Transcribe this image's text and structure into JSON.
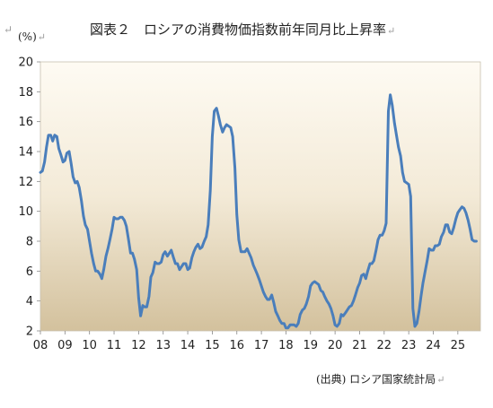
{
  "title": "図表２　ロシアの消費物価指数前年同月比上昇率",
  "source": "(出典) ロシア国家統計局",
  "chart_data": {
    "type": "line",
    "title": "図表２　ロシアの消費物価指数前年同月比上昇率",
    "ylabel": "(%)",
    "xlabel": "",
    "ylim": [
      2,
      20
    ],
    "xlim": [
      2008.0,
      2025.92
    ],
    "yticks": [
      2,
      4,
      6,
      8,
      10,
      12,
      14,
      16,
      18,
      20
    ],
    "xticks": [
      "08",
      "09",
      "10",
      "11",
      "12",
      "13",
      "14",
      "15",
      "16",
      "17",
      "18",
      "19",
      "20",
      "21",
      "22",
      "23",
      "24",
      "25"
    ],
    "grid": false,
    "legend": "none",
    "colors": {
      "line": "#4a7ebb",
      "bg_top": "#fefbf3",
      "bg_bottom": "#d3c19d"
    },
    "series": [
      {
        "x": [
          2008.0,
          2008.08,
          2008.17,
          2008.25,
          2008.33,
          2008.42,
          2008.5,
          2008.58,
          2008.67,
          2008.75,
          2008.83,
          2008.92,
          2009.0,
          2009.08,
          2009.17,
          2009.25,
          2009.33,
          2009.42,
          2009.5,
          2009.58,
          2009.67,
          2009.75,
          2009.83,
          2009.92,
          2010.0,
          2010.08,
          2010.17,
          2010.25,
          2010.33,
          2010.42,
          2010.5,
          2010.58,
          2010.67,
          2010.75,
          2010.83,
          2010.92,
          2011.0,
          2011.08,
          2011.17,
          2011.25,
          2011.33,
          2011.42,
          2011.5,
          2011.58,
          2011.67,
          2011.75,
          2011.83,
          2011.92,
          2012.0,
          2012.08,
          2012.17,
          2012.25,
          2012.33,
          2012.42,
          2012.5,
          2012.58,
          2012.67,
          2012.75,
          2012.83,
          2012.92,
          2013.0,
          2013.08,
          2013.17,
          2013.25,
          2013.33,
          2013.42,
          2013.5,
          2013.58,
          2013.67,
          2013.75,
          2013.83,
          2013.92,
          2014.0,
          2014.08,
          2014.17,
          2014.25,
          2014.33,
          2014.42,
          2014.5,
          2014.58,
          2014.67,
          2014.75,
          2014.83,
          2014.92,
          2015.0,
          2015.08,
          2015.17,
          2015.25,
          2015.33,
          2015.42,
          2015.5,
          2015.58,
          2015.67,
          2015.75,
          2015.83,
          2015.92,
          2016.0,
          2016.08,
          2016.17,
          2016.25,
          2016.33,
          2016.42,
          2016.5,
          2016.58,
          2016.67,
          2016.75,
          2016.83,
          2016.92,
          2017.0,
          2017.08,
          2017.17,
          2017.25,
          2017.33,
          2017.42,
          2017.5,
          2017.58,
          2017.67,
          2017.75,
          2017.83,
          2017.92,
          2018.0,
          2018.08,
          2018.17,
          2018.25,
          2018.33,
          2018.42,
          2018.5,
          2018.58,
          2018.67,
          2018.75,
          2018.83,
          2018.92,
          2019.0,
          2019.08,
          2019.17,
          2019.25,
          2019.33,
          2019.42,
          2019.5,
          2019.58,
          2019.67,
          2019.75,
          2019.83,
          2019.92,
          2020.0,
          2020.08,
          2020.17,
          2020.25,
          2020.33,
          2020.42,
          2020.5,
          2020.58,
          2020.67,
          2020.75,
          2020.83,
          2020.92,
          2021.0,
          2021.08,
          2021.17,
          2021.25,
          2021.33,
          2021.42,
          2021.5,
          2021.58,
          2021.67,
          2021.75,
          2021.83,
          2021.92,
          2022.0,
          2022.08,
          2022.17,
          2022.25,
          2022.33,
          2022.42,
          2022.5,
          2022.58,
          2022.67,
          2022.75,
          2022.83,
          2022.92,
          2023.0,
          2023.08,
          2023.17,
          2023.25,
          2023.33,
          2023.42,
          2023.5,
          2023.58,
          2023.67,
          2023.75,
          2023.83,
          2023.92,
          2024.0,
          2024.08,
          2024.17,
          2024.25,
          2024.33,
          2024.42,
          2024.5,
          2024.58,
          2024.67,
          2024.75,
          2024.83,
          2024.92,
          2025.0,
          2025.08,
          2025.17,
          2025.25,
          2025.33,
          2025.42,
          2025.5,
          2025.58,
          2025.67,
          2025.75
        ],
        "values": [
          12.6,
          12.7,
          13.3,
          14.3,
          15.1,
          15.1,
          14.7,
          15.1,
          15.0,
          14.2,
          13.8,
          13.3,
          13.4,
          13.9,
          14.0,
          13.2,
          12.3,
          11.9,
          12.0,
          11.6,
          10.7,
          9.7,
          9.1,
          8.8,
          8.0,
          7.2,
          6.5,
          6.0,
          6.0,
          5.8,
          5.5,
          6.1,
          7.0,
          7.5,
          8.1,
          8.8,
          9.6,
          9.5,
          9.5,
          9.6,
          9.6,
          9.4,
          9.0,
          8.2,
          7.2,
          7.2,
          6.8,
          6.1,
          4.2,
          3.0,
          3.7,
          3.6,
          3.6,
          4.3,
          5.6,
          5.9,
          6.6,
          6.5,
          6.5,
          6.6,
          7.1,
          7.3,
          7.0,
          7.2,
          7.4,
          6.9,
          6.5,
          6.5,
          6.1,
          6.3,
          6.5,
          6.5,
          6.1,
          6.2,
          6.9,
          7.3,
          7.6,
          7.8,
          7.5,
          7.6,
          8.0,
          8.3,
          9.1,
          11.4,
          15.0,
          16.7,
          16.9,
          16.4,
          15.8,
          15.3,
          15.6,
          15.8,
          15.7,
          15.6,
          15.0,
          12.9,
          9.8,
          8.1,
          7.3,
          7.3,
          7.3,
          7.5,
          7.2,
          6.9,
          6.4,
          6.1,
          5.8,
          5.4,
          5.0,
          4.6,
          4.3,
          4.1,
          4.1,
          4.4,
          3.9,
          3.3,
          3.0,
          2.7,
          2.5,
          2.5,
          2.2,
          2.2,
          2.4,
          2.4,
          2.4,
          2.3,
          2.5,
          3.1,
          3.4,
          3.5,
          3.8,
          4.3,
          5.0,
          5.2,
          5.3,
          5.2,
          5.1,
          4.7,
          4.6,
          4.3,
          4.0,
          3.8,
          3.5,
          3.0,
          2.4,
          2.3,
          2.5,
          3.1,
          3.0,
          3.2,
          3.4,
          3.6,
          3.7,
          4.0,
          4.4,
          4.9,
          5.2,
          5.7,
          5.8,
          5.5,
          6.0,
          6.5,
          6.5,
          6.7,
          7.4,
          8.1,
          8.4,
          8.4,
          8.7,
          9.2,
          16.7,
          17.8,
          17.1,
          15.9,
          15.1,
          14.3,
          13.7,
          12.6,
          12.0,
          11.9,
          11.8,
          11.0,
          3.5,
          2.3,
          2.5,
          3.3,
          4.3,
          5.2,
          6.0,
          6.7,
          7.5,
          7.4,
          7.4,
          7.7,
          7.7,
          7.8,
          8.3,
          8.6,
          9.1,
          9.1,
          8.6,
          8.5,
          8.9,
          9.5,
          9.9,
          10.1,
          10.3,
          10.2,
          9.9,
          9.4,
          8.8,
          8.1,
          8.0,
          8.0
        ]
      }
    ]
  }
}
